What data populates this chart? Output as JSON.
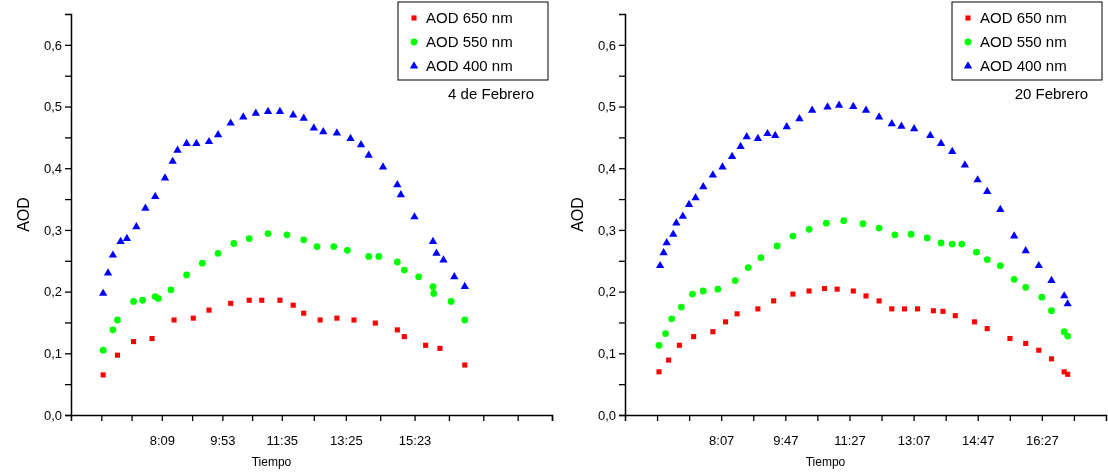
{
  "chart_data": [
    {
      "type": "scatter",
      "xlabel": "Tiempo",
      "ylabel": "AOD",
      "annotations": [
        "4 de Febrero"
      ],
      "legend": "top right",
      "xlim": [
        5.55,
        19.3167
      ],
      "xticks": [
        {
          "value": 6.4167,
          "label": null
        },
        {
          "value": 7.2833,
          "label": null
        },
        {
          "value": 8.15,
          "label": "8:09"
        },
        {
          "value": 9.0167,
          "label": null
        },
        {
          "value": 9.8833,
          "label": "9:53"
        },
        {
          "value": 10.7333,
          "label": null
        },
        {
          "value": 11.5833,
          "label": "11:35"
        },
        {
          "value": 12.5,
          "label": null
        },
        {
          "value": 13.4167,
          "label": "13:25"
        },
        {
          "value": 14.4,
          "label": null
        },
        {
          "value": 15.3833,
          "label": "15:23"
        },
        {
          "value": 16.3667,
          "label": null
        },
        {
          "value": 17.35,
          "label": null
        },
        {
          "value": 18.3333,
          "label": null
        },
        {
          "value": 19.3167,
          "label": null
        }
      ],
      "ylim": [
        0,
        0.65
      ],
      "yticks": [
        {
          "value": 0,
          "label": "0,0"
        },
        {
          "value": 0.05,
          "label": null
        },
        {
          "value": 0.1,
          "label": "0,1"
        },
        {
          "value": 0.15,
          "label": null
        },
        {
          "value": 0.2,
          "label": "0,2"
        },
        {
          "value": 0.25,
          "label": null
        },
        {
          "value": 0.3,
          "label": "0,3"
        },
        {
          "value": 0.35,
          "label": null
        },
        {
          "value": 0.4,
          "label": "0,4"
        },
        {
          "value": 0.45,
          "label": null
        },
        {
          "value": 0.5,
          "label": "0,5"
        },
        {
          "value": 0.55,
          "label": null
        },
        {
          "value": 0.6,
          "label": "0,6"
        }
      ],
      "series": [
        {
          "name": "AOD 650 nm",
          "color": "#ff0000",
          "marker": "square",
          "x": [
            6.47,
            6.88,
            7.34,
            7.87,
            8.5,
            9.05,
            9.5,
            10.12,
            10.65,
            11.01,
            11.53,
            11.91,
            12.21,
            12.68,
            13.16,
            13.65,
            14.26,
            14.89,
            15.09,
            15.7,
            16.11,
            16.82
          ],
          "values": [
            0.065,
            0.097,
            0.119,
            0.124,
            0.154,
            0.157,
            0.17,
            0.181,
            0.186,
            0.186,
            0.186,
            0.178,
            0.165,
            0.154,
            0.157,
            0.154,
            0.149,
            0.138,
            0.127,
            0.113,
            0.108,
            0.081
          ]
        },
        {
          "name": "AOD 550 nm",
          "color": "#00ff00",
          "marker": "circle",
          "x": [
            6.47,
            6.75,
            6.88,
            7.34,
            7.6,
            7.96,
            8.05,
            8.41,
            8.86,
            9.31,
            9.76,
            10.21,
            10.65,
            11.19,
            11.73,
            12.21,
            12.59,
            13.07,
            13.46,
            14.07,
            14.36,
            14.89,
            15.09,
            15.5,
            15.91,
            15.93,
            16.43,
            16.82
          ],
          "values": [
            0.105,
            0.138,
            0.154,
            0.184,
            0.186,
            0.192,
            0.189,
            0.203,
            0.227,
            0.246,
            0.262,
            0.278,
            0.286,
            0.294,
            0.292,
            0.284,
            0.273,
            0.273,
            0.267,
            0.257,
            0.257,
            0.248,
            0.235,
            0.224,
            0.208,
            0.197,
            0.184,
            0.154
          ]
        },
        {
          "name": "AOD 400 nm",
          "color": "#0000ff",
          "marker": "triangle",
          "x": [
            6.47,
            6.61,
            6.75,
            6.97,
            7.15,
            7.42,
            7.68,
            7.96,
            8.24,
            8.46,
            8.6,
            8.86,
            9.14,
            9.5,
            9.76,
            10.12,
            10.48,
            10.84,
            11.19,
            11.53,
            11.91,
            12.21,
            12.5,
            12.77,
            13.16,
            13.55,
            13.85,
            14.07,
            14.48,
            14.89,
            14.99,
            15.38,
            15.91,
            16.01,
            16.21,
            16.52,
            16.82
          ],
          "values": [
            0.197,
            0.23,
            0.259,
            0.281,
            0.286,
            0.305,
            0.335,
            0.354,
            0.384,
            0.411,
            0.429,
            0.44,
            0.44,
            0.443,
            0.454,
            0.473,
            0.483,
            0.489,
            0.492,
            0.492,
            0.486,
            0.481,
            0.465,
            0.459,
            0.457,
            0.448,
            0.438,
            0.421,
            0.402,
            0.373,
            0.357,
            0.321,
            0.281,
            0.262,
            0.251,
            0.224,
            0.208
          ]
        }
      ]
    },
    {
      "type": "scatter",
      "xlabel": "Tiempo",
      "ylabel": "AOD",
      "annotations": [
        "20 Febrero"
      ],
      "legend": "top right",
      "xlim": [
        5.6167,
        18.1167
      ],
      "xticks": [
        {
          "value": 6.45,
          "label": null
        },
        {
          "value": 7.2833,
          "label": null
        },
        {
          "value": 8.1167,
          "label": "8:07"
        },
        {
          "value": 8.95,
          "label": null
        },
        {
          "value": 9.7833,
          "label": "9:47"
        },
        {
          "value": 10.6167,
          "label": null
        },
        {
          "value": 11.45,
          "label": "11:27"
        },
        {
          "value": 12.2833,
          "label": null
        },
        {
          "value": 13.1167,
          "label": "13:07"
        },
        {
          "value": 13.95,
          "label": null
        },
        {
          "value": 14.7833,
          "label": "14:47"
        },
        {
          "value": 15.6167,
          "label": null
        },
        {
          "value": 16.45,
          "label": "16:27"
        },
        {
          "value": 17.2833,
          "label": null
        }
      ],
      "ylim": [
        0,
        0.65
      ],
      "yticks": [
        {
          "value": 0,
          "label": "0,0"
        },
        {
          "value": 0.05,
          "label": null
        },
        {
          "value": 0.1,
          "label": "0,1"
        },
        {
          "value": 0.15,
          "label": null
        },
        {
          "value": 0.2,
          "label": "0,2"
        },
        {
          "value": 0.25,
          "label": null
        },
        {
          "value": 0.3,
          "label": "0,3"
        },
        {
          "value": 0.35,
          "label": null
        },
        {
          "value": 0.4,
          "label": "0,4"
        },
        {
          "value": 0.45,
          "label": null
        },
        {
          "value": 0.5,
          "label": "0,5"
        },
        {
          "value": 0.55,
          "label": null
        },
        {
          "value": 0.6,
          "label": "0,6"
        }
      ],
      "series": [
        {
          "name": "AOD 650 nm",
          "color": "#ff0000",
          "marker": "square",
          "x": [
            6.5,
            6.75,
            7.03,
            7.4,
            7.9,
            8.23,
            8.53,
            9.07,
            9.48,
            9.98,
            10.4,
            10.8,
            11.13,
            11.55,
            11.88,
            12.22,
            12.55,
            12.88,
            13.22,
            13.63,
            13.88,
            14.2,
            14.7,
            15.03,
            15.62,
            16.03,
            16.37,
            16.7,
            17.03,
            17.12
          ],
          "values": [
            0.07,
            0.089,
            0.113,
            0.127,
            0.135,
            0.151,
            0.164,
            0.172,
            0.185,
            0.196,
            0.201,
            0.205,
            0.204,
            0.201,
            0.193,
            0.185,
            0.172,
            0.172,
            0.172,
            0.169,
            0.168,
            0.161,
            0.151,
            0.14,
            0.124,
            0.116,
            0.105,
            0.091,
            0.07,
            0.066
          ]
        },
        {
          "name": "AOD 550 nm",
          "color": "#00ff00",
          "marker": "circle",
          "x": [
            6.5,
            6.67,
            6.83,
            7.08,
            7.37,
            7.65,
            8.03,
            8.48,
            8.82,
            9.15,
            9.57,
            9.98,
            10.4,
            10.85,
            11.3,
            11.8,
            12.22,
            12.63,
            13.05,
            13.47,
            13.83,
            14.12,
            14.37,
            14.75,
            15.03,
            15.37,
            15.73,
            16.03,
            16.45,
            16.7,
            17.03,
            17.12
          ],
          "values": [
            0.113,
            0.132,
            0.156,
            0.175,
            0.196,
            0.201,
            0.204,
            0.218,
            0.239,
            0.255,
            0.274,
            0.29,
            0.301,
            0.311,
            0.315,
            0.31,
            0.303,
            0.292,
            0.293,
            0.287,
            0.279,
            0.277,
            0.277,
            0.264,
            0.252,
            0.242,
            0.22,
            0.207,
            0.191,
            0.169,
            0.135,
            0.128
          ]
        },
        {
          "name": "AOD 400 nm",
          "color": "#0000ff",
          "marker": "triangle",
          "x": [
            6.53,
            6.62,
            6.7,
            6.87,
            6.95,
            7.12,
            7.28,
            7.45,
            7.65,
            7.9,
            8.15,
            8.4,
            8.62,
            8.78,
            9.07,
            9.32,
            9.52,
            9.82,
            10.15,
            10.48,
            10.88,
            11.18,
            11.55,
            11.88,
            12.22,
            12.55,
            12.8,
            13.13,
            13.55,
            13.83,
            14.12,
            14.45,
            14.78,
            15.03,
            15.37,
            15.73,
            16.03,
            16.37,
            16.7,
            17.03,
            17.12
          ],
          "values": [
            0.242,
            0.263,
            0.279,
            0.293,
            0.311,
            0.322,
            0.341,
            0.352,
            0.37,
            0.389,
            0.402,
            0.419,
            0.435,
            0.451,
            0.448,
            0.456,
            0.453,
            0.467,
            0.48,
            0.494,
            0.499,
            0.502,
            0.5,
            0.494,
            0.483,
            0.472,
            0.468,
            0.464,
            0.453,
            0.44,
            0.427,
            0.405,
            0.381,
            0.362,
            0.333,
            0.29,
            0.266,
            0.242,
            0.218,
            0.193,
            0.18
          ]
        }
      ]
    }
  ]
}
